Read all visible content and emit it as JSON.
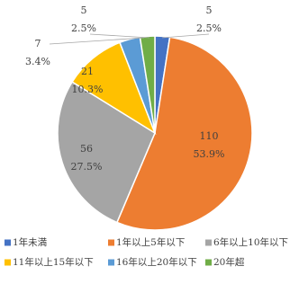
{
  "chart_data": {
    "type": "pie",
    "categories": [
      "1年未満",
      "1年以上5年以下",
      "6年以上10年以下",
      "11年以上15年以下",
      "16年以上20年以下",
      "20年超"
    ],
    "values": [
      5,
      110,
      56,
      21,
      7,
      5
    ],
    "percent_labels": [
      "2.5%",
      "53.9%",
      "27.5%",
      "10.3%",
      "3.4%",
      "2.5%"
    ],
    "colors": [
      "#4472c4",
      "#ed7d31",
      "#a5a5a5",
      "#ffc000",
      "#5b9bd5",
      "#70ad47"
    ],
    "legend": "bottom"
  }
}
